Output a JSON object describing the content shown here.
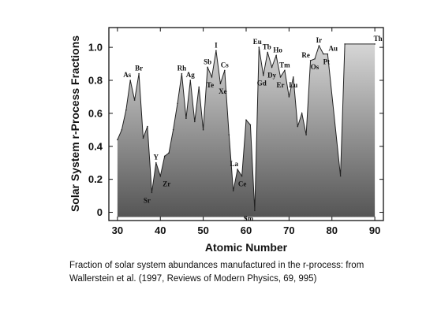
{
  "chart_data": {
    "type": "area",
    "title": "",
    "xlabel": "Atomic Number",
    "ylabel": "Solar System r-Process Fractions",
    "xlim": [
      28,
      92
    ],
    "ylim": [
      -0.05,
      1.12
    ],
    "xticks": [
      30,
      40,
      50,
      60,
      70,
      80,
      90
    ],
    "yticks": [
      0,
      0.2,
      0.4,
      0.6,
      0.8,
      1.0
    ],
    "ytick_labels": [
      "0",
      "0.2",
      "0.4",
      "0.6",
      "0.8",
      "1.0"
    ],
    "fill": "vertical gradient, dark gray at bottom to light gray at top",
    "series": [
      {
        "points": [
          [
            30,
            0.44
          ],
          [
            31,
            0.5
          ],
          [
            32,
            0.62
          ],
          [
            33,
            0.8
          ],
          [
            34,
            0.68
          ],
          [
            35,
            0.84
          ],
          [
            36,
            0.45
          ],
          [
            37,
            0.52
          ],
          [
            38,
            0.12
          ],
          [
            39,
            0.3
          ],
          [
            40,
            0.22
          ],
          [
            41,
            0.34
          ],
          [
            42,
            0.36
          ],
          [
            43,
            0.5
          ],
          [
            44,
            0.66
          ],
          [
            45,
            0.84
          ],
          [
            46,
            0.57
          ],
          [
            47,
            0.8
          ],
          [
            48,
            0.55
          ],
          [
            49,
            0.76
          ],
          [
            50,
            0.5
          ],
          [
            51,
            0.88
          ],
          [
            52,
            0.82
          ],
          [
            53,
            0.98
          ],
          [
            54,
            0.78
          ],
          [
            55,
            0.86
          ],
          [
            56,
            0.47
          ],
          [
            57,
            0.13
          ],
          [
            58,
            0.26
          ],
          [
            59,
            0.22
          ],
          [
            60,
            0.56
          ],
          [
            61,
            0.53
          ],
          [
            62,
            0.01
          ],
          [
            63,
            1.0
          ],
          [
            64,
            0.83
          ],
          [
            65,
            0.97
          ],
          [
            66,
            0.88
          ],
          [
            67,
            0.95
          ],
          [
            68,
            0.82
          ],
          [
            69,
            0.86
          ],
          [
            70,
            0.7
          ],
          [
            71,
            0.82
          ],
          [
            72,
            0.52
          ],
          [
            73,
            0.6
          ],
          [
            74,
            0.47
          ],
          [
            75,
            0.92
          ],
          [
            76,
            0.93
          ],
          [
            77,
            1.01
          ],
          [
            78,
            0.96
          ],
          [
            79,
            0.96
          ],
          [
            82,
            0.22
          ],
          [
            83,
            1.02
          ],
          [
            90,
            1.02
          ]
        ]
      }
    ],
    "annotations": [
      {
        "text": "As",
        "x": 33,
        "y": 0.8
      },
      {
        "text": "Br",
        "x": 35,
        "y": 0.84
      },
      {
        "text": "Y",
        "x": 39,
        "y": 0.3
      },
      {
        "text": "Sr",
        "x": 38,
        "y": 0.12
      },
      {
        "text": "Zr",
        "x": 40,
        "y": 0.22
      },
      {
        "text": "Rh",
        "x": 45,
        "y": 0.84
      },
      {
        "text": "Ag",
        "x": 47,
        "y": 0.8
      },
      {
        "text": "Sb",
        "x": 51,
        "y": 0.88
      },
      {
        "text": "Te",
        "x": 52,
        "y": 0.82
      },
      {
        "text": "I",
        "x": 53,
        "y": 0.98
      },
      {
        "text": "Xe",
        "x": 54,
        "y": 0.78
      },
      {
        "text": "Cs",
        "x": 55,
        "y": 0.86
      },
      {
        "text": "La",
        "x": 57,
        "y": 0.26
      },
      {
        "text": "Ce",
        "x": 58,
        "y": 0.22
      },
      {
        "text": "Sm",
        "x": 62,
        "y": 0.01
      },
      {
        "text": "Eu",
        "x": 63,
        "y": 1.0
      },
      {
        "text": "Gd",
        "x": 64,
        "y": 0.83
      },
      {
        "text": "Tb",
        "x": 65,
        "y": 0.97
      },
      {
        "text": "Dy",
        "x": 66,
        "y": 0.88
      },
      {
        "text": "Ho",
        "x": 67,
        "y": 0.95
      },
      {
        "text": "Er",
        "x": 68,
        "y": 0.82
      },
      {
        "text": "Tm",
        "x": 69,
        "y": 0.86
      },
      {
        "text": "Lu",
        "x": 71,
        "y": 0.82
      },
      {
        "text": "Re",
        "x": 75,
        "y": 0.92
      },
      {
        "text": "Os",
        "x": 76,
        "y": 0.93
      },
      {
        "text": "Ir",
        "x": 77,
        "y": 1.01
      },
      {
        "text": "Pt",
        "x": 78,
        "y": 0.96
      },
      {
        "text": "Au",
        "x": 79,
        "y": 0.96
      },
      {
        "text": "Th",
        "x": 90,
        "y": 1.02
      }
    ]
  },
  "caption": {
    "line1": "Fraction of solar system abundances manufactured in the r-process: from",
    "line2": "Wallerstein et al. (1997, Reviews of Modern Physics, 69, 995)"
  },
  "colors": {
    "fill_top": "#d6d6d6",
    "fill_bottom": "#555555",
    "line": "#222222"
  }
}
